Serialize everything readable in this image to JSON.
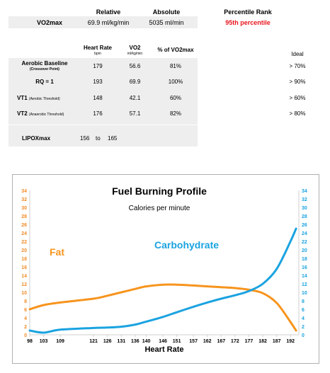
{
  "summary": {
    "headers": {
      "relative": "Relative",
      "absolute": "Absolute",
      "percentile": "Percentile Rank"
    },
    "vo2max_label": "VO2max",
    "relative_value": "69.9  ml/kg/min",
    "absolute_value": "5035  ml/min",
    "percentile_value": "95th  percentile"
  },
  "thresholds": {
    "col_heart_rate": "Heart Rate",
    "col_heart_rate_unit": "bpm",
    "col_vo2": "VO2",
    "col_vo2_unit": "ml/kg/min",
    "col_pct": "% of VO2max",
    "col_ideal": "Ideal",
    "rows": [
      {
        "label": "Aerobic Baseline",
        "sublabel": "(Crossover Point)",
        "hr": "179",
        "vo2": "56.6",
        "pct": "81%",
        "ideal": "> 70%"
      },
      {
        "label": "RQ = 1",
        "sublabel": "",
        "hr": "193",
        "vo2": "69.9",
        "pct": "100%",
        "ideal": "> 90%"
      },
      {
        "label": "VT1",
        "sublabel": "(Aerobic Threshold)",
        "hr": "148",
        "vo2": "42.1",
        "pct": "60%",
        "ideal": "> 60%"
      },
      {
        "label": "VT2",
        "sublabel": "(Anaerobic Threshold)",
        "hr": "176",
        "vo2": "57.1",
        "pct": "82%",
        "ideal": "> 80%"
      }
    ]
  },
  "lipox": {
    "label": "LIPOXmax",
    "low": "156",
    "to": "to",
    "high": "165"
  },
  "chart_data": {
    "type": "line",
    "title": "Fuel Burning Profile",
    "subtitle": "Calories per minute",
    "xlabel": "Heart Rate",
    "ylabel": "",
    "categories": [
      "98",
      "103",
      "109",
      "121",
      "126",
      "131",
      "136",
      "140",
      "146",
      "151",
      "157",
      "162",
      "167",
      "172",
      "177",
      "182",
      "187",
      "192"
    ],
    "ylim": [
      0,
      34
    ],
    "y_ticks": [
      0,
      2,
      4,
      6,
      8,
      10,
      12,
      14,
      16,
      18,
      20,
      22,
      24,
      26,
      28,
      30,
      32,
      34
    ],
    "axis_colors": {
      "left": "#f28c28",
      "right": "#1aa3e0"
    },
    "grid": false,
    "series": [
      {
        "name": "Fat",
        "color": "#f7941d",
        "x": [
          98,
          103,
          109,
          121,
          126,
          131,
          136,
          140,
          146,
          151,
          157,
          162,
          167,
          172,
          177,
          182,
          187,
          192,
          194
        ],
        "values": [
          6,
          7,
          7.6,
          8.5,
          9.2,
          10,
          10.8,
          11.4,
          11.8,
          11.8,
          11.6,
          11.4,
          11.2,
          11,
          10.6,
          9.8,
          7.5,
          3,
          1
        ]
      },
      {
        "name": "Carbohydrate",
        "color": "#1aa3e0",
        "x": [
          98,
          103,
          109,
          121,
          126,
          131,
          136,
          140,
          146,
          151,
          157,
          162,
          167,
          172,
          177,
          182,
          187,
          192,
          194
        ],
        "values": [
          1,
          0.5,
          1.2,
          1.6,
          1.7,
          1.9,
          2.4,
          3.1,
          4.2,
          5.3,
          6.6,
          7.6,
          8.5,
          9.3,
          10.3,
          12,
          15.5,
          22,
          25
        ]
      }
    ]
  }
}
